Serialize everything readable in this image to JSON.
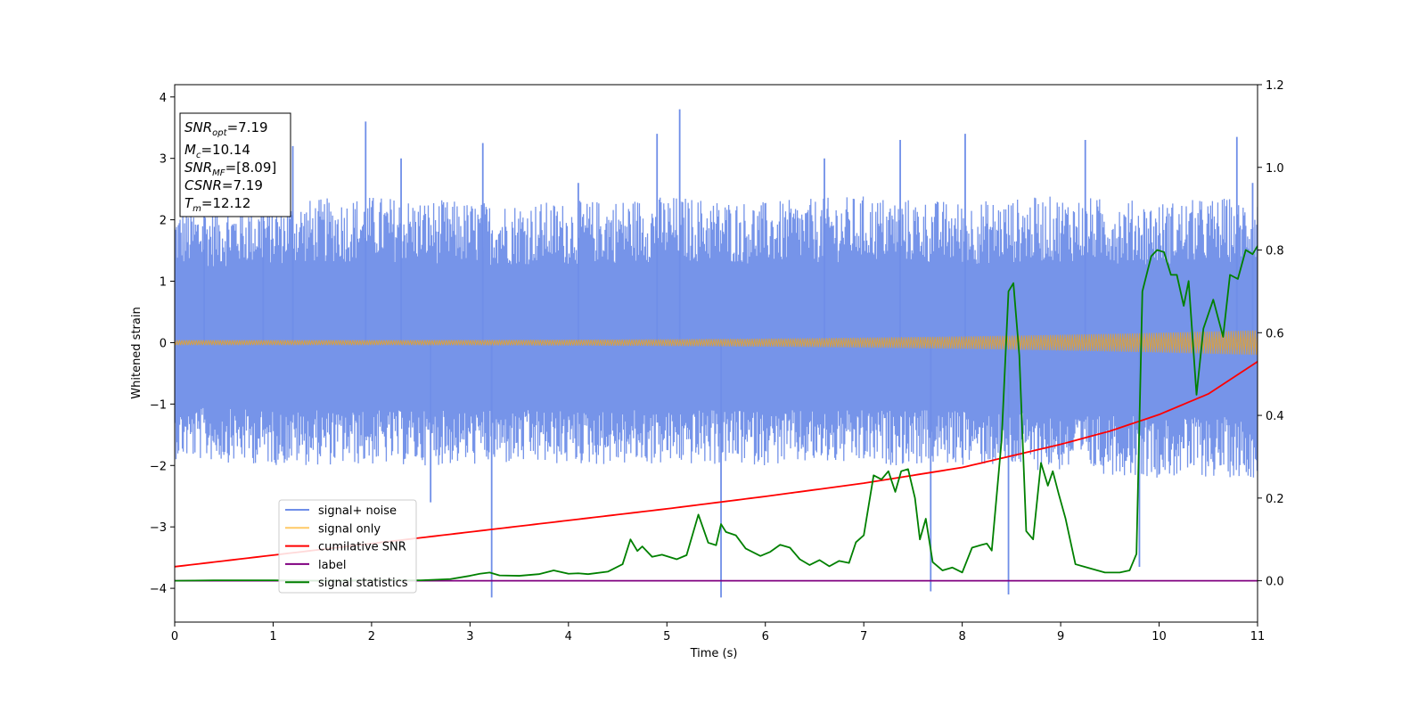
{
  "chart_data": {
    "type": "line",
    "xlabel": "Time (s)",
    "ylabel": "Whitened strain",
    "xlim": [
      0,
      11
    ],
    "ylim": [
      -4.55,
      4.2
    ],
    "ylim_right": [
      -0.1,
      1.2
    ],
    "xticks": [
      "0",
      "1",
      "2",
      "3",
      "4",
      "5",
      "6",
      "7",
      "8",
      "9",
      "10",
      "11"
    ],
    "yticks": [
      "−4",
      "−3",
      "−2",
      "−1",
      "0",
      "1",
      "2",
      "3",
      "4"
    ],
    "yticks_right": [
      "0.0",
      "0.2",
      "0.4",
      "0.6",
      "0.8",
      "1.0",
      "1.2"
    ],
    "grid": false,
    "legend_position": "lower-left",
    "info_box": {
      "snr_opt": "=7.19",
      "mc": "=10.14",
      "snr_mf": "=[8.09]",
      "csnr": "=7.19",
      "tm": "=12.12"
    },
    "series": [
      {
        "name": "signal+ noise",
        "color": "#6f8ee8",
        "axis": "left",
        "envelope_upper": [
          2.2,
          2.3,
          2.4,
          2.3,
          2.3,
          2.4,
          2.3,
          2.4,
          2.3,
          2.4,
          2.3,
          2.4
        ],
        "envelope_lower": [
          -1.9,
          -2.0,
          -2.0,
          -2.0,
          -2.0,
          -2.0,
          -2.0,
          -2.0,
          -2.0,
          -2.1,
          -2.2,
          -2.2
        ],
        "spikes": [
          [
            0.3,
            2.5
          ],
          [
            0.9,
            3.1
          ],
          [
            1.2,
            3.2
          ],
          [
            1.94,
            3.6
          ],
          [
            2.3,
            3.0
          ],
          [
            2.6,
            -2.6
          ],
          [
            3.13,
            3.25
          ],
          [
            3.22,
            -4.15
          ],
          [
            4.1,
            2.6
          ],
          [
            4.9,
            3.4
          ],
          [
            5.13,
            3.8
          ],
          [
            5.55,
            -4.15
          ],
          [
            6.6,
            3.0
          ],
          [
            7.37,
            3.3
          ],
          [
            7.68,
            -4.05
          ],
          [
            8.03,
            3.4
          ],
          [
            8.47,
            -4.1
          ],
          [
            9.25,
            3.3
          ],
          [
            9.8,
            -3.65
          ],
          [
            10.79,
            3.35
          ],
          [
            10.95,
            2.6
          ]
        ]
      },
      {
        "name": "signal only",
        "color": "#ffa500",
        "axis": "left",
        "amplitude_start": 0.04,
        "amplitude_end": 0.2
      },
      {
        "name": "cumilative SNR",
        "color": "#ff0000",
        "axis": "right",
        "x": [
          0,
          1,
          2,
          3,
          4,
          5,
          6,
          7,
          8,
          9,
          9.5,
          10,
          10.5,
          11
        ],
        "y": [
          0.034,
          0.062,
          0.09,
          0.118,
          0.146,
          0.174,
          0.204,
          0.236,
          0.274,
          0.33,
          0.362,
          0.402,
          0.452,
          0.53
        ]
      },
      {
        "name": "label",
        "color": "#800080",
        "axis": "right",
        "x": [
          0,
          11
        ],
        "y": [
          0.0,
          0.0
        ]
      },
      {
        "name": "signal statistics",
        "color": "#008000",
        "axis": "right",
        "x": [
          0,
          0.4,
          1,
          1.5,
          2,
          2.5,
          2.8,
          3.0,
          3.1,
          3.2,
          3.3,
          3.5,
          3.7,
          3.85,
          4.0,
          4.1,
          4.2,
          4.4,
          4.55,
          4.63,
          4.7,
          4.75,
          4.85,
          4.95,
          5.1,
          5.2,
          5.32,
          5.42,
          5.5,
          5.55,
          5.6,
          5.7,
          5.8,
          5.95,
          6.05,
          6.15,
          6.25,
          6.35,
          6.45,
          6.55,
          6.65,
          6.75,
          6.85,
          6.92,
          7.0,
          7.1,
          7.18,
          7.25,
          7.32,
          7.38,
          7.45,
          7.52,
          7.57,
          7.63,
          7.7,
          7.8,
          7.9,
          8.0,
          8.1,
          8.2,
          8.25,
          8.3,
          8.4,
          8.47,
          8.52,
          8.58,
          8.65,
          8.72,
          8.8,
          8.87,
          8.92,
          8.98,
          9.05,
          9.15,
          9.3,
          9.45,
          9.6,
          9.7,
          9.77,
          9.83,
          9.92,
          9.98,
          10.05,
          10.12,
          10.18,
          10.25,
          10.3,
          10.38,
          10.45,
          10.55,
          10.65,
          10.72,
          10.8,
          10.88,
          10.95,
          11
        ],
        "y": [
          0.0,
          0.001,
          0.001,
          0.0,
          0.001,
          0.001,
          0.004,
          0.012,
          0.017,
          0.02,
          0.013,
          0.012,
          0.016,
          0.025,
          0.017,
          0.018,
          0.016,
          0.022,
          0.04,
          0.1,
          0.072,
          0.083,
          0.058,
          0.063,
          0.052,
          0.062,
          0.16,
          0.092,
          0.086,
          0.137,
          0.118,
          0.11,
          0.078,
          0.06,
          0.07,
          0.087,
          0.08,
          0.052,
          0.038,
          0.05,
          0.035,
          0.048,
          0.043,
          0.093,
          0.11,
          0.255,
          0.245,
          0.265,
          0.215,
          0.265,
          0.27,
          0.2,
          0.1,
          0.15,
          0.045,
          0.025,
          0.032,
          0.02,
          0.08,
          0.087,
          0.09,
          0.073,
          0.34,
          0.7,
          0.72,
          0.545,
          0.12,
          0.1,
          0.285,
          0.23,
          0.265,
          0.21,
          0.15,
          0.04,
          0.03,
          0.02,
          0.02,
          0.025,
          0.065,
          0.7,
          0.785,
          0.8,
          0.795,
          0.74,
          0.74,
          0.665,
          0.725,
          0.45,
          0.61,
          0.68,
          0.59,
          0.74,
          0.73,
          0.8,
          0.79,
          0.81
        ]
      }
    ]
  }
}
